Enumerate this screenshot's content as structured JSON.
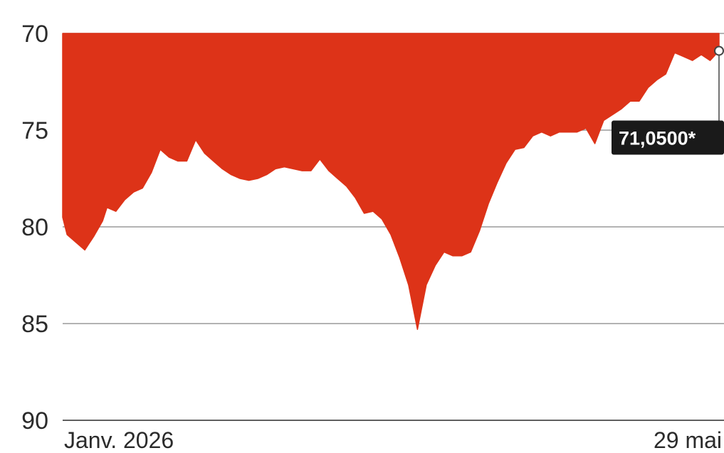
{
  "chart_data": {
    "type": "area",
    "y_axis": {
      "min": 70,
      "max": 90,
      "inverted": true,
      "ticks": [
        70,
        75,
        80,
        85,
        90
      ],
      "tick_labels": [
        "70",
        "75",
        "80",
        "85",
        "90"
      ]
    },
    "x_axis": {
      "start_label": "Janv. 2026",
      "end_label": "29 mai"
    },
    "fill_color": "#dd3318",
    "grid": true,
    "series": [
      {
        "x": [
          "2026-01-01",
          "2026-01-02",
          "2026-01-04",
          "2026-01-06",
          "2026-01-08",
          "2026-01-10",
          "2026-01-11",
          "2026-01-13",
          "2026-01-15",
          "2026-01-17",
          "2026-01-19",
          "2026-01-21",
          "2026-01-23",
          "2026-01-25",
          "2026-01-27",
          "2026-01-29",
          "2026-01-31",
          "2026-02-02",
          "2026-02-04",
          "2026-02-06",
          "2026-02-08",
          "2026-02-10",
          "2026-02-12",
          "2026-02-14",
          "2026-02-16",
          "2026-02-18",
          "2026-02-20",
          "2026-02-22",
          "2026-02-24",
          "2026-02-26",
          "2026-02-28",
          "2026-03-02",
          "2026-03-04",
          "2026-03-06",
          "2026-03-08",
          "2026-03-10",
          "2026-03-12",
          "2026-03-14",
          "2026-03-16",
          "2026-03-18",
          "2026-03-20",
          "2026-03-22",
          "2026-03-24",
          "2026-03-26",
          "2026-03-28",
          "2026-03-30",
          "2026-04-01",
          "2026-04-03",
          "2026-04-05",
          "2026-04-07",
          "2026-04-09",
          "2026-04-11",
          "2026-04-13",
          "2026-04-15",
          "2026-04-17",
          "2026-04-19",
          "2026-04-21",
          "2026-04-23",
          "2026-04-25",
          "2026-04-27",
          "2026-04-29",
          "2026-05-01",
          "2026-05-03",
          "2026-05-05",
          "2026-05-07",
          "2026-05-09",
          "2026-05-11",
          "2026-05-13",
          "2026-05-15",
          "2026-05-17",
          "2026-05-19",
          "2026-05-21",
          "2026-05-23",
          "2026-05-25",
          "2026-05-27",
          "2026-05-29"
        ],
        "values": [
          79.5,
          80.4,
          80.8,
          81.2,
          80.5,
          79.7,
          79.0,
          79.2,
          78.6,
          78.2,
          78.0,
          77.2,
          76.0,
          76.4,
          76.6,
          76.6,
          75.5,
          76.2,
          76.6,
          77.0,
          77.3,
          77.5,
          77.6,
          77.5,
          77.3,
          77.0,
          76.9,
          77.0,
          77.1,
          77.1,
          76.5,
          77.1,
          77.5,
          77.9,
          78.5,
          79.3,
          79.2,
          79.6,
          80.4,
          81.6,
          83.0,
          85.3,
          83.0,
          82.0,
          81.3,
          81.5,
          81.5,
          81.3,
          80.2,
          78.8,
          77.7,
          76.7,
          76.0,
          75.9,
          75.3,
          75.1,
          75.3,
          75.1,
          75.1,
          75.1,
          74.9,
          75.7,
          74.5,
          74.2,
          73.9,
          73.5,
          73.5,
          72.8,
          72.4,
          72.1,
          71.0,
          71.2,
          71.4,
          71.1,
          71.4,
          70.9
        ]
      }
    ],
    "callout": {
      "label": "71,0500*",
      "value": 71.05
    }
  }
}
